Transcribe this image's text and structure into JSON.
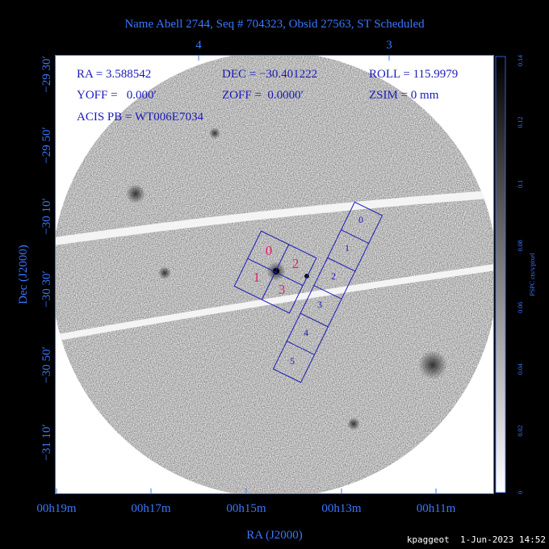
{
  "title": "Name Abell 2744, Seq # 704323, Obsid 27563, ST Scheduled",
  "top_axis_ticks": [
    "4",
    "3"
  ],
  "left_axis_ticks": [
    "−29 30′",
    "−29 50′",
    "−30 10′",
    "−30 30′",
    "−30 50′",
    "−31 10′"
  ],
  "bottom_axis_ticks": [
    "00h19m",
    "00h17m",
    "00h15m",
    "00h13m",
    "00h11m"
  ],
  "x_label": "RA (J2000)",
  "y_label": "Dec (J2000)",
  "info": {
    "ra": "RA = 3.588542",
    "dec": "DEC = −30.401222",
    "roll": "ROLL = 115.9979",
    "yoff": "YOFF =   0.000′",
    "zoff": "ZOFF =  0.0000′",
    "zsim": "ZSIM = 0 mm",
    "acis_pb": "ACIS PB = WT006E7034"
  },
  "acis_i_chips": [
    "0",
    "1",
    "2",
    "3"
  ],
  "acis_s_chips": [
    "0",
    "1",
    "2",
    "3",
    "4",
    "5"
  ],
  "colorbar": {
    "label": "PSPC cts/s/pixel",
    "ticks": [
      "0",
      "0.02",
      "0.04",
      "0.06",
      "0.08",
      "0.1",
      "0.12",
      "0.14"
    ]
  },
  "footer": "kpaggeot  1-Jun-2023 14:52"
}
